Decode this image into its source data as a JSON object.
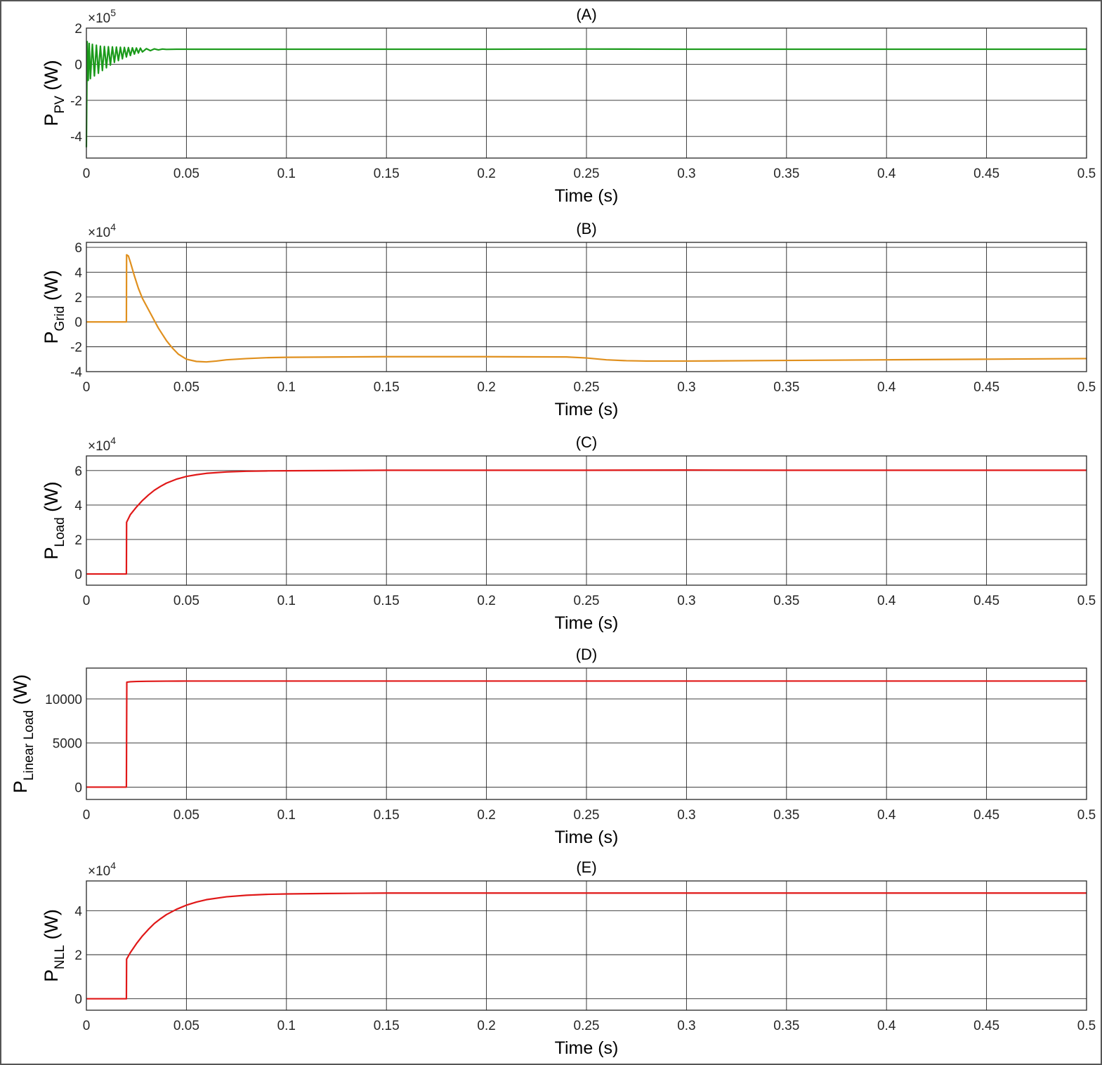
{
  "chart_data": [
    {
      "type": "line",
      "title": "(A)",
      "xlabel": "Time (s)",
      "ylabel_main": "P",
      "ylabel_sub": "PV",
      "ylabel_unit": "(W)",
      "exponent": {
        "base": "×10",
        "power": "5"
      },
      "xlim": [
        0,
        0.5
      ],
      "ylim": [
        -5.2,
        2
      ],
      "xticks": [
        0,
        0.05,
        0.1,
        0.15,
        0.2,
        0.25,
        0.3,
        0.35,
        0.4,
        0.45,
        0.5
      ],
      "xtick_labels": [
        "0",
        "0.05",
        "0.1",
        "0.15",
        "0.2",
        "0.25",
        "0.3",
        "0.35",
        "0.4",
        "0.45",
        "0.5"
      ],
      "yticks": [
        -4,
        -2,
        0,
        2
      ],
      "ytick_labels": [
        "-4",
        "-2",
        "0",
        "2"
      ],
      "grid": true,
      "series": [
        {
          "color": "#1a9a1a",
          "x": [
            0,
            0.0004,
            0.0009,
            0.0014,
            0.002,
            0.003,
            0.004,
            0.005,
            0.006,
            0.007,
            0.008,
            0.009,
            0.01,
            0.011,
            0.012,
            0.013,
            0.014,
            0.015,
            0.016,
            0.017,
            0.018,
            0.019,
            0.02,
            0.021,
            0.022,
            0.023,
            0.024,
            0.025,
            0.026,
            0.027,
            0.028,
            0.03,
            0.032,
            0.034,
            0.036,
            0.038,
            0.04,
            0.045,
            0.05,
            0.1,
            0.15,
            0.2,
            0.25,
            0.3,
            0.35,
            0.4,
            0.45,
            0.5
          ],
          "y": [
            -4.6,
            1.25,
            -0.9,
            1.15,
            -0.8,
            1.1,
            -0.65,
            1.05,
            -0.5,
            1.0,
            -0.35,
            0.98,
            -0.2,
            0.97,
            -0.05,
            0.96,
            0.1,
            0.95,
            0.2,
            0.94,
            0.3,
            0.93,
            0.4,
            0.92,
            0.48,
            0.91,
            0.56,
            0.9,
            0.62,
            0.89,
            0.68,
            0.86,
            0.75,
            0.85,
            0.79,
            0.84,
            0.82,
            0.83,
            0.83,
            0.83,
            0.83,
            0.83,
            0.84,
            0.83,
            0.83,
            0.83,
            0.83,
            0.83
          ]
        }
      ]
    },
    {
      "type": "line",
      "title": "(B)",
      "xlabel": "Time (s)",
      "ylabel_main": "P",
      "ylabel_sub": "Grid",
      "ylabel_unit": "(W)",
      "exponent": {
        "base": "×10",
        "power": "4"
      },
      "xlim": [
        0,
        0.5
      ],
      "ylim": [
        -4,
        6.4
      ],
      "xticks": [
        0,
        0.05,
        0.1,
        0.15,
        0.2,
        0.25,
        0.3,
        0.35,
        0.4,
        0.45,
        0.5
      ],
      "xtick_labels": [
        "0",
        "0.05",
        "0.1",
        "0.15",
        "0.2",
        "0.25",
        "0.3",
        "0.35",
        "0.4",
        "0.45",
        "0.5"
      ],
      "yticks": [
        -4,
        -2,
        0,
        2,
        4,
        6
      ],
      "ytick_labels": [
        "-4",
        "-2",
        "0",
        "2",
        "4",
        "6"
      ],
      "grid": true,
      "series": [
        {
          "color": "#e0901e",
          "x": [
            0,
            0.02,
            0.0201,
            0.021,
            0.022,
            0.024,
            0.026,
            0.028,
            0.03,
            0.032,
            0.034,
            0.036,
            0.038,
            0.04,
            0.043,
            0.046,
            0.05,
            0.055,
            0.06,
            0.065,
            0.07,
            0.08,
            0.09,
            0.1,
            0.15,
            0.2,
            0.24,
            0.25,
            0.26,
            0.27,
            0.28,
            0.3,
            0.35,
            0.4,
            0.45,
            0.5
          ],
          "y": [
            0,
            0,
            5.4,
            5.3,
            4.8,
            3.7,
            2.7,
            1.9,
            1.3,
            0.7,
            0.1,
            -0.5,
            -1.0,
            -1.5,
            -2.1,
            -2.6,
            -3.0,
            -3.18,
            -3.22,
            -3.15,
            -3.05,
            -2.95,
            -2.88,
            -2.85,
            -2.8,
            -2.8,
            -2.82,
            -2.9,
            -3.05,
            -3.12,
            -3.15,
            -3.15,
            -3.1,
            -3.05,
            -3.0,
            -2.95
          ]
        }
      ]
    },
    {
      "type": "line",
      "title": "(C)",
      "xlabel": "Time (s)",
      "ylabel_main": "P",
      "ylabel_sub": "Load",
      "ylabel_unit": "(W)",
      "exponent": {
        "base": "×10",
        "power": "4"
      },
      "xlim": [
        0,
        0.5
      ],
      "ylim": [
        -0.65,
        6.85
      ],
      "xticks": [
        0,
        0.05,
        0.1,
        0.15,
        0.2,
        0.25,
        0.3,
        0.35,
        0.4,
        0.45,
        0.5
      ],
      "xtick_labels": [
        "0",
        "0.05",
        "0.1",
        "0.15",
        "0.2",
        "0.25",
        "0.3",
        "0.35",
        "0.4",
        "0.45",
        "0.5"
      ],
      "yticks": [
        0,
        2,
        4,
        6
      ],
      "ytick_labels": [
        "0",
        "2",
        "4",
        "6"
      ],
      "grid": true,
      "series": [
        {
          "color": "#e01818",
          "x": [
            0,
            0.02,
            0.0201,
            0.022,
            0.025,
            0.028,
            0.031,
            0.034,
            0.037,
            0.04,
            0.045,
            0.05,
            0.055,
            0.06,
            0.07,
            0.08,
            0.09,
            0.1,
            0.12,
            0.15,
            0.2,
            0.25,
            0.3,
            0.35,
            0.4,
            0.45,
            0.5
          ],
          "y": [
            0,
            0,
            3.0,
            3.45,
            3.88,
            4.26,
            4.58,
            4.86,
            5.08,
            5.27,
            5.5,
            5.66,
            5.76,
            5.84,
            5.92,
            5.96,
            5.98,
            5.99,
            6.0,
            6.02,
            6.02,
            6.02,
            6.03,
            6.02,
            6.02,
            6.02,
            6.02
          ]
        }
      ]
    },
    {
      "type": "line",
      "title": "(D)",
      "xlabel": "Time (s)",
      "ylabel_main": "P",
      "ylabel_sub": "Linear Load",
      "ylabel_unit": "(W)",
      "exponent": null,
      "xlim": [
        0,
        0.5
      ],
      "ylim": [
        -1400,
        13500
      ],
      "xticks": [
        0,
        0.05,
        0.1,
        0.15,
        0.2,
        0.25,
        0.3,
        0.35,
        0.4,
        0.45,
        0.5
      ],
      "xtick_labels": [
        "0",
        "0.05",
        "0.1",
        "0.15",
        "0.2",
        "0.25",
        "0.3",
        "0.35",
        "0.4",
        "0.45",
        "0.5"
      ],
      "yticks": [
        0,
        5000,
        10000
      ],
      "ytick_labels": [
        "0",
        "5000",
        "10000"
      ],
      "grid": true,
      "series": [
        {
          "color": "#e01818",
          "x": [
            0,
            0.02,
            0.0202,
            0.022,
            0.025,
            0.03,
            0.04,
            0.05,
            0.1,
            0.15,
            0.2,
            0.25,
            0.3,
            0.35,
            0.4,
            0.45,
            0.5
          ],
          "y": [
            0,
            0,
            11900,
            11950,
            11980,
            12000,
            12020,
            12030,
            12030,
            12030,
            12030,
            12030,
            12030,
            12030,
            12030,
            12030,
            12030
          ]
        }
      ]
    },
    {
      "type": "line",
      "title": "(E)",
      "xlabel": "Time (s)",
      "ylabel_main": "P",
      "ylabel_sub": "NLL",
      "ylabel_unit": "(W)",
      "exponent": {
        "base": "×10",
        "power": "4"
      },
      "xlim": [
        0,
        0.5
      ],
      "ylim": [
        -0.52,
        5.35
      ],
      "xticks": [
        0,
        0.05,
        0.1,
        0.15,
        0.2,
        0.25,
        0.3,
        0.35,
        0.4,
        0.45,
        0.5
      ],
      "xtick_labels": [
        "0",
        "0.05",
        "0.1",
        "0.15",
        "0.2",
        "0.25",
        "0.3",
        "0.35",
        "0.4",
        "0.45",
        "0.5"
      ],
      "yticks": [
        0,
        2,
        4
      ],
      "ytick_labels": [
        "0",
        "2",
        "4"
      ],
      "grid": true,
      "series": [
        {
          "color": "#e01818",
          "x": [
            0,
            0.02,
            0.0201,
            0.022,
            0.025,
            0.028,
            0.031,
            0.034,
            0.037,
            0.04,
            0.045,
            0.05,
            0.055,
            0.06,
            0.07,
            0.08,
            0.09,
            0.1,
            0.12,
            0.15,
            0.2,
            0.25,
            0.3,
            0.35,
            0.4,
            0.45,
            0.5
          ],
          "y": [
            0,
            0,
            1.8,
            2.1,
            2.5,
            2.85,
            3.15,
            3.42,
            3.63,
            3.82,
            4.06,
            4.25,
            4.39,
            4.5,
            4.63,
            4.7,
            4.74,
            4.76,
            4.78,
            4.8,
            4.8,
            4.8,
            4.8,
            4.8,
            4.8,
            4.8,
            4.8
          ]
        }
      ]
    }
  ]
}
